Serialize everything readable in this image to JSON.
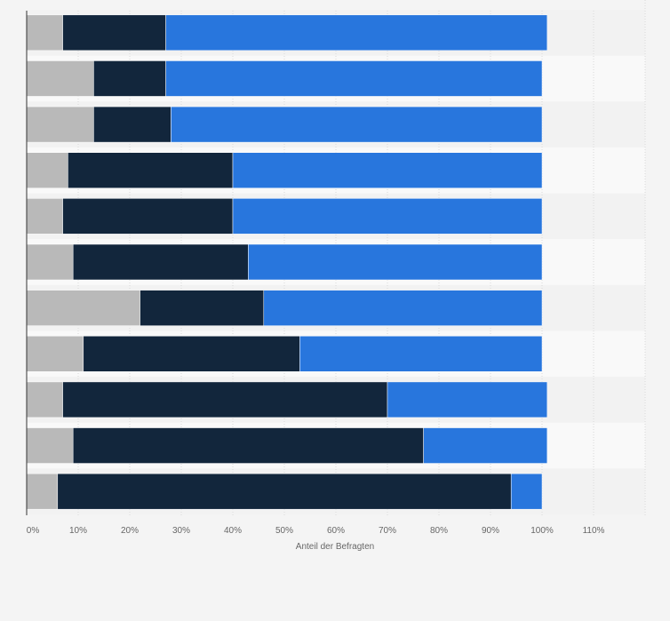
{
  "chart_data": {
    "type": "bar",
    "orientation": "horizontal",
    "stacked": true,
    "categories": [
      "",
      "",
      "",
      "",
      "",
      "",
      "",
      "",
      "",
      "",
      ""
    ],
    "series": [
      {
        "name": "",
        "color": "#b9b9b9",
        "values": [
          7,
          13,
          13,
          8,
          7,
          9,
          22,
          11,
          7,
          9,
          6
        ]
      },
      {
        "name": "",
        "color": "#12263c",
        "values": [
          20,
          14,
          15,
          32,
          33,
          34,
          24,
          42,
          63,
          68,
          88
        ]
      },
      {
        "name": "",
        "color": "#2876dd",
        "values": [
          74,
          73,
          72,
          60,
          60,
          57,
          54,
          47,
          31,
          24,
          6
        ]
      }
    ],
    "xlabel": "Anteil der Befragten",
    "ylabel": "",
    "xlim": [
      0,
      120
    ],
    "xticks": [
      0,
      10,
      20,
      30,
      40,
      50,
      60,
      70,
      80,
      90,
      100,
      110
    ],
    "xtick_labels": [
      "0%",
      "10%",
      "20%",
      "30%",
      "40%",
      "50%",
      "60%",
      "70%",
      "80%",
      "90%",
      "100%",
      "110%"
    ],
    "grid": true
  }
}
